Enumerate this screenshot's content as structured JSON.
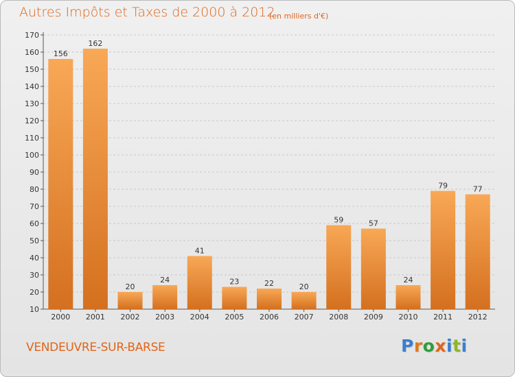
{
  "header": {
    "title": "Autres Impôts et Taxes de 2000 à 2012",
    "subtitle": "(en milliers d'€)"
  },
  "footer": {
    "location": "VENDEUVRE-SUR-BARSE",
    "logo_letters": [
      "P",
      "r",
      "o",
      "x",
      "i",
      "t",
      "i"
    ],
    "logo_colors": [
      "#3a7fd0",
      "#e07a1a",
      "#2e9e3c",
      "#e0651b",
      "#3a7fd0",
      "#8fb62a",
      "#3a7fd0"
    ]
  },
  "colors": {
    "bar_top": "#f8a856",
    "bar_bottom": "#d4701f",
    "accent": "#e0651b",
    "grid": "#c8c8c8"
  },
  "chart_data": {
    "type": "bar",
    "categories": [
      "2000",
      "2001",
      "2002",
      "2003",
      "2004",
      "2005",
      "2006",
      "2007",
      "2008",
      "2009",
      "2010",
      "2011",
      "2012"
    ],
    "values": [
      156,
      162,
      20,
      24,
      41,
      23,
      22,
      20,
      59,
      57,
      24,
      79,
      77
    ],
    "ylim": [
      10,
      170
    ],
    "yticks": [
      10,
      20,
      30,
      40,
      50,
      60,
      70,
      80,
      90,
      100,
      110,
      120,
      130,
      140,
      150,
      160,
      170
    ],
    "grid": "horizontal dashed",
    "title": "Autres Impôts et Taxes de 2000 à 2012",
    "xlabel": "",
    "ylabel": ""
  }
}
